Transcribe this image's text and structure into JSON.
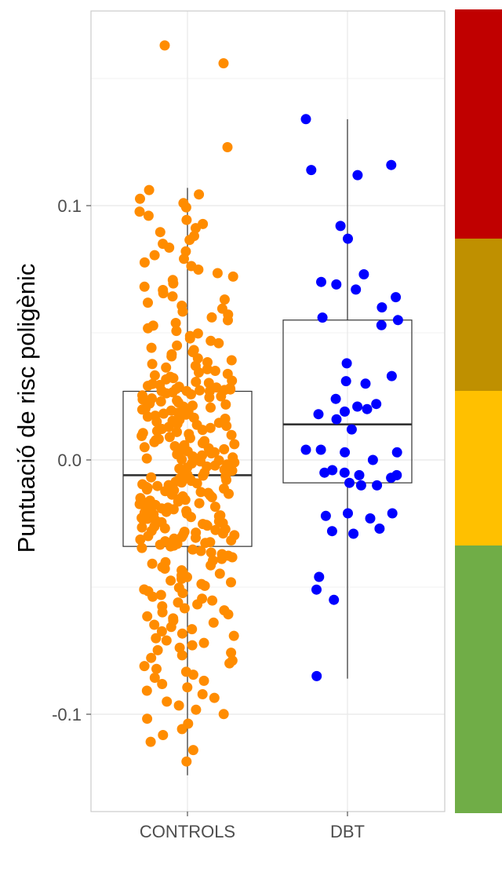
{
  "chart_data": {
    "type": "boxplot",
    "ylabel": "Puntuació de risc poligènic",
    "xlabel": "",
    "categories": [
      "CONTROLS",
      "DBT"
    ],
    "ylim": [
      -0.127,
      0.175
    ],
    "y_ticks": [
      -0.1,
      0.0,
      0.1
    ],
    "y_tick_labels": [
      "-0.1",
      "0.0",
      "0.1"
    ],
    "grid": true,
    "boxes": [
      {
        "category": "CONTROLS",
        "whisker_low": -0.124,
        "q1": -0.034,
        "median": -0.006,
        "q3": 0.027,
        "whisker_high": 0.107,
        "color": "#FF8C00"
      },
      {
        "category": "DBT",
        "whisker_low": -0.086,
        "q1": -0.009,
        "median": 0.014,
        "q3": 0.055,
        "whisker_high": 0.134,
        "color": "#0000FF"
      }
    ],
    "points": {
      "DBT": [
        0.134,
        0.116,
        0.114,
        0.112,
        0.092,
        0.087,
        0.073,
        0.07,
        0.069,
        0.067,
        0.064,
        0.06,
        0.056,
        0.055,
        0.053,
        0.038,
        0.033,
        0.031,
        0.03,
        0.024,
        0.022,
        0.021,
        0.02,
        0.019,
        0.018,
        0.016,
        0.012,
        0.004,
        0.004,
        0.003,
        0.003,
        0.0,
        -0.004,
        -0.005,
        -0.005,
        -0.006,
        -0.006,
        -0.007,
        -0.009,
        -0.01,
        -0.01,
        -0.021,
        -0.021,
        -0.022,
        -0.023,
        -0.027,
        -0.028,
        -0.029,
        -0.046,
        -0.051,
        -0.055,
        -0.085
      ]
    },
    "controls_point_count": 330,
    "side_colors": [
      "#C00000",
      "#BF9000",
      "#FFC000",
      "#70AD47"
    ]
  }
}
